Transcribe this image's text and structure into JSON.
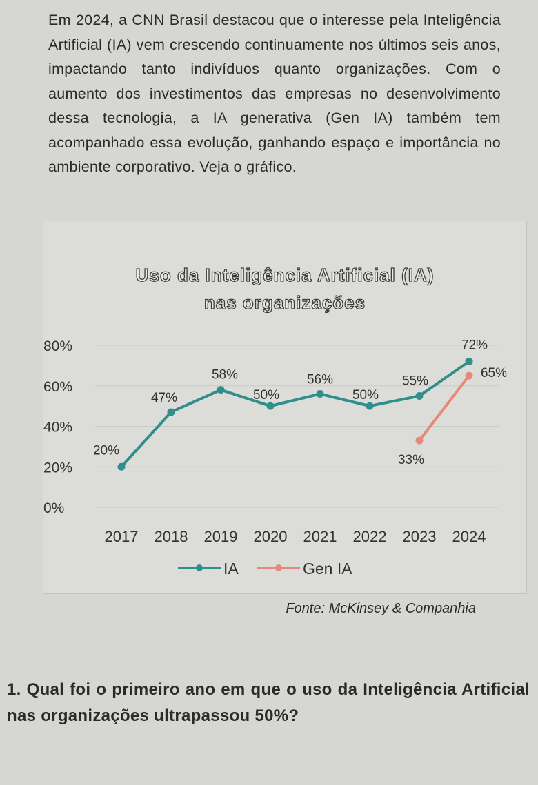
{
  "intro_text": "Em 2024, a CNN Brasil destacou que o interesse pela Inteligência Artificial (IA) vem crescendo continuamente nos últimos seis anos, impactando tanto indivíduos quanto organizações. Com o aumento dos investimentos das empresas no desenvolvimento dessa tecnologia, a IA generativa (Gen IA) também tem acompanhado essa evolução, ganhando espaço e importância no ambiente corporativo. Veja o gráfico.",
  "chart_data": {
    "type": "line",
    "title": "Uso da Inteligência Artificial (IA) nas organizações",
    "title_lines": [
      "Uso da Inteligência Artificial (IA)",
      "nas organizações"
    ],
    "x": [
      "2017",
      "2018",
      "2019",
      "2020",
      "2021",
      "2022",
      "2023",
      "2024"
    ],
    "yticks": [
      "0%",
      "20%",
      "40%",
      "60%",
      "80%"
    ],
    "ylim": [
      0,
      80
    ],
    "grid": true,
    "legend_position": "bottom",
    "series": [
      {
        "name": "IA",
        "color": "#2f8f8a",
        "values": [
          20,
          47,
          58,
          50,
          56,
          50,
          55,
          72
        ],
        "labels": [
          "20%",
          "47%",
          "58%",
          "50%",
          "56%",
          "50%",
          "55%",
          "72%"
        ]
      },
      {
        "name": "Gen IA",
        "color": "#e58a78",
        "values": [
          null,
          null,
          null,
          null,
          null,
          null,
          33,
          65
        ],
        "labels": [
          "",
          "",
          "",
          "",
          "",
          "",
          "33%",
          "65%"
        ]
      }
    ]
  },
  "source": "Fonte: McKinsey & Companhia",
  "question": "1. Qual foi o primeiro ano em que o uso da Inteligência Artificial nas organizações ultrapassou 50%?"
}
